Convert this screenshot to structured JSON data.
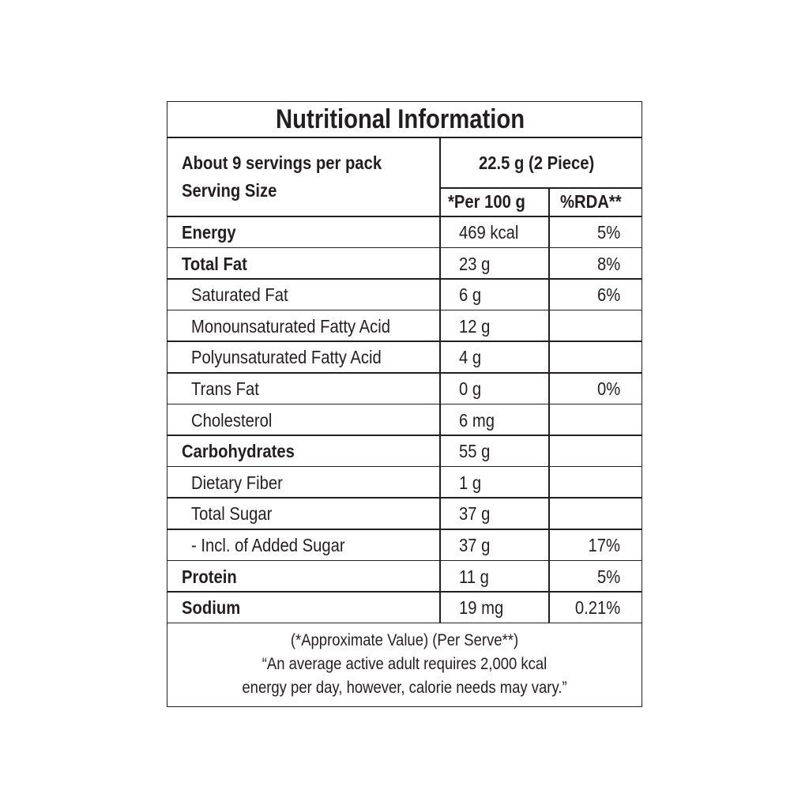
{
  "title": "Nutritional Information",
  "header": {
    "servings": "About 9 servings per pack",
    "serving_size_label": "Serving Size",
    "serving_size": "22.5 g (2 Piece)",
    "col_per100": "*Per 100 g",
    "col_rda": "%RDA**"
  },
  "rows": [
    {
      "name": "Energy",
      "per100": "469 kcal",
      "rda": "5%",
      "bold": true
    },
    {
      "name": "Total Fat",
      "per100": "23 g",
      "rda": "8%",
      "bold": true
    },
    {
      "name": "Saturated Fat",
      "per100": "6 g",
      "rda": "6%"
    },
    {
      "name": "Monounsaturated Fatty Acid",
      "per100": "12 g"
    },
    {
      "name": "Polyunsaturated Fatty Acid",
      "per100": "4 g"
    },
    {
      "name": "Trans Fat",
      "per100": "0 g",
      "rda": "0%"
    },
    {
      "name": "Cholesterol",
      "per100": "6 mg"
    },
    {
      "name": "Carbohydrates",
      "per100": "55 g",
      "bold": true
    },
    {
      "name": "Dietary Fiber",
      "per100": "1 g"
    },
    {
      "name": "Total Sugar",
      "per100": "37 g"
    },
    {
      "name": "- Incl. of Added Sugar",
      "per100": "37 g",
      "rda": "17%"
    },
    {
      "name": "Protein",
      "per100": "11 g",
      "rda": "5%",
      "bold": true
    },
    {
      "name": "Sodium",
      "per100": "19 mg",
      "rda": "0.21%",
      "bold": true
    }
  ],
  "footer": {
    "lines": [
      "(*Approximate Value) (Per Serve**)",
      "“An average active adult requires 2,000 kcal",
      "energy per day, however, calorie needs may vary.”"
    ]
  }
}
